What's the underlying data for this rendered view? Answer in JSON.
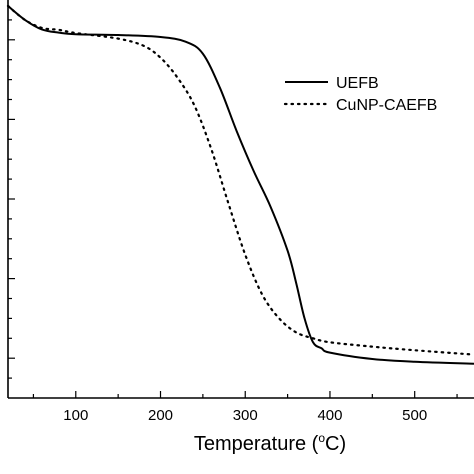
{
  "chart_data": {
    "type": "line",
    "xlabel": "Temperature (°C)",
    "xlabel_parts": {
      "pre": "Temperature (",
      "sup": "o",
      "post": "C)"
    },
    "ylabel": "",
    "xlim": [
      20,
      570
    ],
    "ylim": [
      0,
      100
    ],
    "x_ticks": [
      100,
      200,
      300,
      400,
      500
    ],
    "x_tick_labels": [
      "100",
      "200",
      "300",
      "400",
      "500"
    ],
    "y_ticks": [
      10,
      30,
      50,
      70,
      90
    ],
    "y_tick_labels": [],
    "grid": false,
    "legend_position": "top-right",
    "series": [
      {
        "name": "UEFB",
        "style": "solid",
        "color": "#000000",
        "x": [
          20,
          40,
          60,
          80,
          100,
          150,
          200,
          230,
          250,
          270,
          290,
          310,
          330,
          350,
          360,
          370,
          380,
          390,
          400,
          450,
          500,
          570
        ],
        "y": [
          98.5,
          95,
          92.6,
          91.8,
          91.4,
          91.2,
          90.7,
          89.5,
          86.5,
          78,
          67,
          57,
          48,
          37,
          29,
          20,
          14,
          12.5,
          11.4,
          9.8,
          9.1,
          8.6
        ]
      },
      {
        "name": "CuNP-CAEFB",
        "style": "dotted",
        "color": "#000000",
        "x": [
          20,
          40,
          60,
          80,
          100,
          150,
          180,
          200,
          220,
          240,
          260,
          280,
          300,
          320,
          340,
          360,
          380,
          400,
          450,
          500,
          570
        ],
        "y": [
          98.5,
          95,
          93,
          92.5,
          91.7,
          90.3,
          88.5,
          85.5,
          80.5,
          73.5,
          62.5,
          49,
          36,
          26,
          20,
          16.5,
          15,
          14,
          12.9,
          12,
          10.9
        ]
      }
    ]
  }
}
